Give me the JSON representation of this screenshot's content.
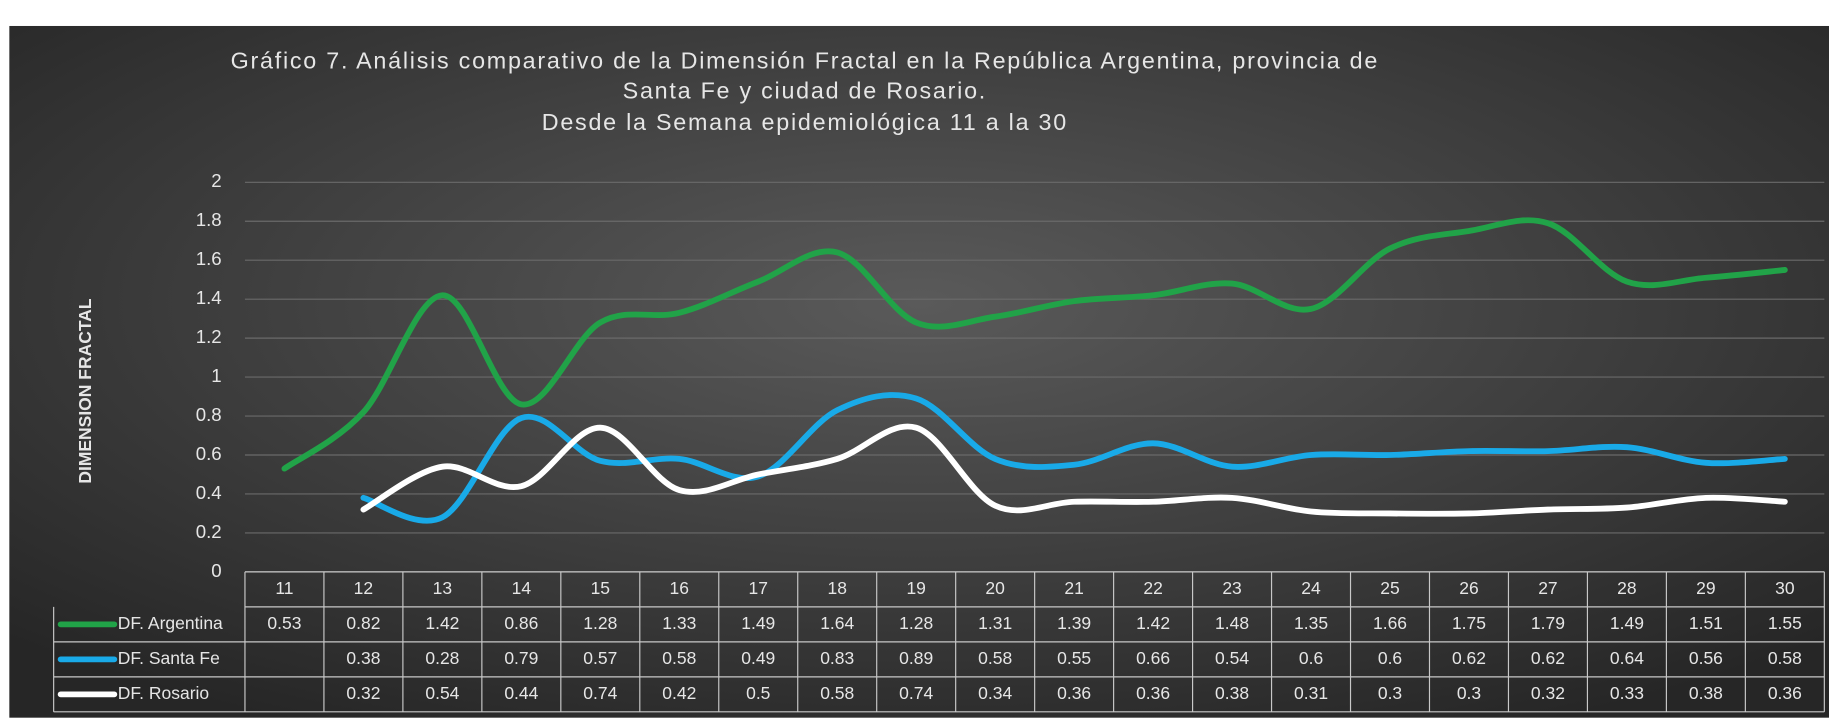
{
  "chart_data": {
    "type": "line",
    "title": [
      "Gráfico 7. Análisis comparativo de la Dimensión Fractal en la República Argentina, provincia de",
      "Santa Fe y ciudad de Rosario.",
      "Desde la Semana  epidemiológica 11 a la 30"
    ],
    "y_label": "DIMENSION FRACTAL",
    "categories": [
      11,
      12,
      13,
      14,
      15,
      16,
      17,
      18,
      19,
      20,
      21,
      22,
      23,
      24,
      25,
      26,
      27,
      28,
      29,
      30
    ],
    "series": [
      {
        "name": "DF. Argentina",
        "color": "#21a348",
        "values": [
          0.53,
          0.82,
          1.42,
          0.86,
          1.28,
          1.33,
          1.49,
          1.64,
          1.28,
          1.31,
          1.39,
          1.42,
          1.48,
          1.35,
          1.66,
          1.75,
          1.79,
          1.49,
          1.51,
          1.55
        ]
      },
      {
        "name": "DF. Santa Fe",
        "color": "#19aae8",
        "values": [
          null,
          0.38,
          0.28,
          0.79,
          0.57,
          0.58,
          0.49,
          0.83,
          0.89,
          0.58,
          0.55,
          0.66,
          0.54,
          0.6,
          0.6,
          0.62,
          0.62,
          0.64,
          0.56,
          0.58
        ]
      },
      {
        "name": "DF. Rosario",
        "color": "#ffffff",
        "values": [
          null,
          0.32,
          0.54,
          0.44,
          0.74,
          0.42,
          0.5,
          0.58,
          0.74,
          0.34,
          0.36,
          0.36,
          0.38,
          0.31,
          0.3,
          0.3,
          0.32,
          0.33,
          0.38,
          0.36
        ]
      }
    ],
    "ylim": [
      0,
      2
    ],
    "yticks": [
      0,
      0.2,
      0.4,
      0.6,
      0.8,
      1,
      1.2,
      1.4,
      1.6,
      1.8,
      2
    ],
    "grid": true
  }
}
